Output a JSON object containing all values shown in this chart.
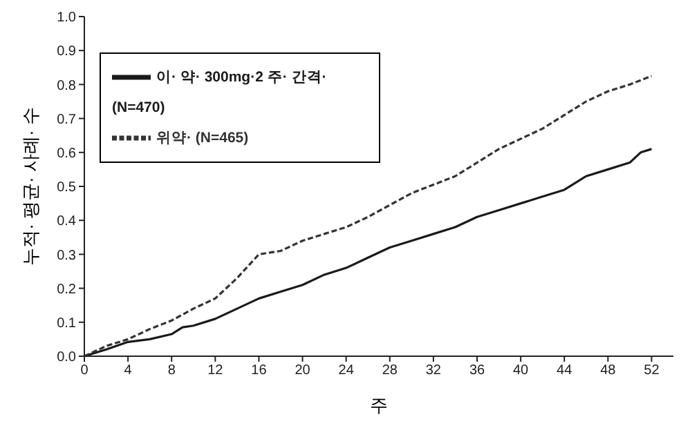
{
  "chart_data": {
    "type": "line",
    "xlabel": "주",
    "ylabel": "누적· 평균· 사례· 수",
    "xlim": [
      0,
      54
    ],
    "xticks": [
      0,
      4,
      8,
      12,
      16,
      20,
      24,
      28,
      32,
      36,
      40,
      44,
      48,
      52
    ],
    "ylim": [
      0,
      1
    ],
    "yticks": [
      {
        "value": 0,
        "label": "0.0"
      },
      {
        "value": 0.1,
        "label": "0.1"
      },
      {
        "value": 0.2,
        "label": "0.2"
      },
      {
        "value": 0.3,
        "label": "0.3"
      },
      {
        "value": 0.4,
        "label": "0.4"
      },
      {
        "value": 0.5,
        "label": "0.5"
      },
      {
        "value": 0.6,
        "label": "0.6"
      },
      {
        "value": 0.7,
        "label": "0.7"
      },
      {
        "value": 0.8,
        "label": "0.8"
      },
      {
        "value": 0.9,
        "label": "0.9"
      },
      {
        "value": 1,
        "label": "1.0"
      }
    ],
    "grid": false,
    "legend": "top left",
    "marker": "none",
    "series": [
      {
        "name": "이· 약· 300mg·2 주· 간격· (N=470)",
        "color": "#1a1a1a",
        "line_style": "solid",
        "x": [
          0,
          2,
          4,
          6,
          8,
          9,
          10,
          12,
          14,
          16,
          18,
          20,
          22,
          24,
          26,
          28,
          30,
          32,
          34,
          36,
          38,
          40,
          42,
          44,
          46,
          48,
          50,
          51,
          52
        ],
        "values": [
          0,
          0.02,
          0.042,
          0.05,
          0.065,
          0.085,
          0.09,
          0.11,
          0.14,
          0.17,
          0.19,
          0.21,
          0.24,
          0.26,
          0.29,
          0.32,
          0.34,
          0.36,
          0.38,
          0.41,
          0.43,
          0.45,
          0.47,
          0.49,
          0.53,
          0.55,
          0.57,
          0.6,
          0.61
        ]
      },
      {
        "name": "위약· (N=465)",
        "color": "#333333",
        "line_style": "dashed",
        "x": [
          0,
          2,
          4,
          6,
          8,
          10,
          12,
          14,
          16,
          18,
          20,
          22,
          24,
          26,
          28,
          30,
          32,
          34,
          36,
          38,
          40,
          42,
          44,
          46,
          48,
          50,
          52
        ],
        "values": [
          0,
          0.03,
          0.05,
          0.08,
          0.105,
          0.14,
          0.17,
          0.23,
          0.3,
          0.31,
          0.34,
          0.36,
          0.38,
          0.41,
          0.445,
          0.48,
          0.505,
          0.53,
          0.57,
          0.61,
          0.64,
          0.67,
          0.71,
          0.75,
          0.78,
          0.8,
          0.825
        ]
      }
    ]
  }
}
